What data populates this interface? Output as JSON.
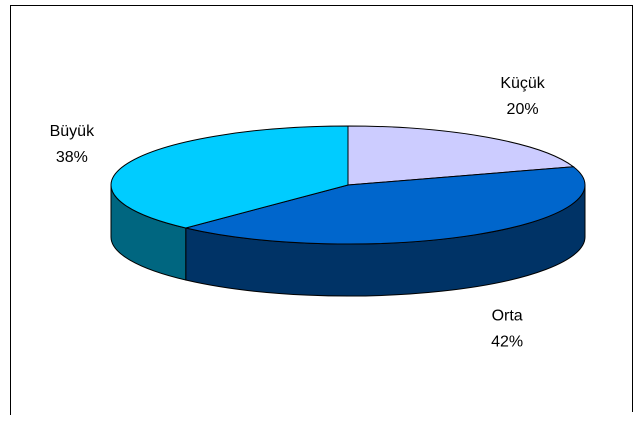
{
  "chart_data": {
    "type": "pie3d",
    "categories": [
      "Küçük",
      "Orta",
      "Büyük"
    ],
    "values": [
      20,
      42,
      38
    ],
    "value_labels": [
      "20%",
      "42%",
      "38%"
    ],
    "colors": [
      "#ccccff",
      "#0066cc",
      "#00ccff"
    ]
  }
}
